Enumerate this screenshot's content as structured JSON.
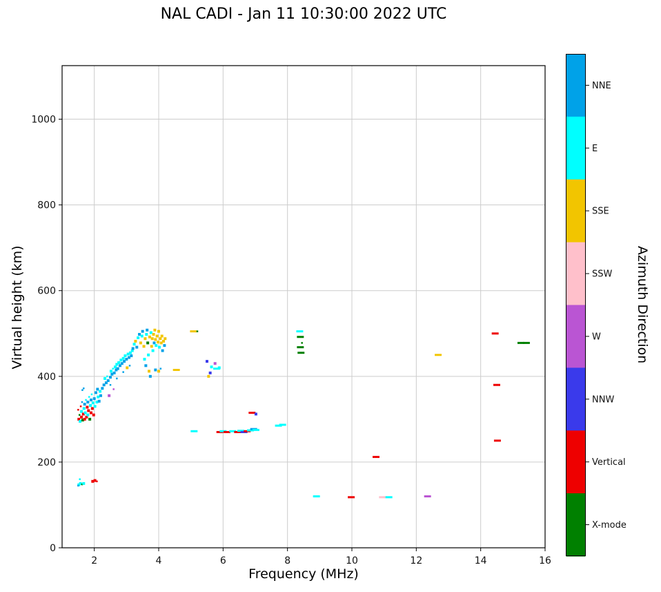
{
  "title": "NAL CADI - Jan 11 10:30:00 2022 UTC",
  "chart_data": {
    "type": "scatter",
    "title": "NAL CADI - Jan 11 10:30:00 2022 UTC",
    "xlabel": "Frequency (MHz)",
    "ylabel": "Virtual height (km)",
    "legend_title": "Azimuth Direction",
    "xlim": [
      1,
      16
    ],
    "ylim": [
      0,
      1125
    ],
    "xticks": [
      2,
      4,
      6,
      8,
      10,
      12,
      14,
      16
    ],
    "yticks": [
      0,
      200,
      400,
      600,
      800,
      1000
    ],
    "grid": true,
    "categories": [
      {
        "label": "NNE",
        "color": "#00a2e8"
      },
      {
        "label": "E",
        "color": "#00ffff"
      },
      {
        "label": "SSE",
        "color": "#f2c500"
      },
      {
        "label": "SSW",
        "color": "#ffc0cb"
      },
      {
        "label": "W",
        "color": "#ba55d3"
      },
      {
        "label": "NNW",
        "color": "#3a3aeb"
      },
      {
        "label": "Vertical",
        "color": "#ee0000"
      },
      {
        "label": "X-mode",
        "color": "#008000"
      }
    ],
    "points_format": "[frequency_MHz, virtual_height_km, category_index, marker_size(1=square,2=dash,3=dot)]",
    "points": [
      [
        1.52,
        147,
        1,
        1
      ],
      [
        1.57,
        150,
        1,
        1
      ],
      [
        1.62,
        148,
        7,
        3
      ],
      [
        1.67,
        150,
        1,
        1
      ],
      [
        1.55,
        160,
        1,
        3
      ],
      [
        1.5,
        145,
        0,
        3
      ],
      [
        1.95,
        155,
        6,
        1
      ],
      [
        2.02,
        157,
        6,
        1
      ],
      [
        2.08,
        155,
        6,
        3
      ],
      [
        1.5,
        322,
        6,
        3
      ],
      [
        1.52,
        300,
        6,
        1
      ],
      [
        1.54,
        310,
        7,
        3
      ],
      [
        1.56,
        295,
        1,
        1
      ],
      [
        1.58,
        330,
        6,
        3
      ],
      [
        1.6,
        305,
        6,
        1
      ],
      [
        1.6,
        318,
        1,
        1
      ],
      [
        1.62,
        340,
        0,
        3
      ],
      [
        1.64,
        298,
        7,
        1
      ],
      [
        1.66,
        312,
        6,
        1
      ],
      [
        1.68,
        325,
        1,
        1
      ],
      [
        1.7,
        300,
        6,
        1
      ],
      [
        1.7,
        335,
        0,
        1
      ],
      [
        1.72,
        315,
        1,
        1
      ],
      [
        1.74,
        345,
        1,
        3
      ],
      [
        1.76,
        305,
        6,
        1
      ],
      [
        1.78,
        328,
        6,
        1
      ],
      [
        1.8,
        310,
        1,
        1
      ],
      [
        1.8,
        340,
        0,
        1
      ],
      [
        1.82,
        320,
        6,
        1
      ],
      [
        1.84,
        352,
        1,
        3
      ],
      [
        1.86,
        300,
        7,
        1
      ],
      [
        1.88,
        332,
        1,
        1
      ],
      [
        1.9,
        315,
        6,
        1
      ],
      [
        1.9,
        345,
        0,
        1
      ],
      [
        1.92,
        358,
        1,
        3
      ],
      [
        1.94,
        325,
        6,
        1
      ],
      [
        1.96,
        338,
        1,
        1
      ],
      [
        1.98,
        310,
        6,
        1
      ],
      [
        2.0,
        348,
        0,
        1
      ],
      [
        2.02,
        330,
        1,
        1
      ],
      [
        2.05,
        362,
        0,
        1
      ],
      [
        2.08,
        340,
        1,
        1
      ],
      [
        2.1,
        370,
        0,
        1
      ],
      [
        2.12,
        352,
        1,
        1
      ],
      [
        2.15,
        342,
        0,
        1
      ],
      [
        2.18,
        365,
        1,
        1
      ],
      [
        2.2,
        355,
        0,
        1
      ],
      [
        2.25,
        372,
        0,
        1
      ],
      [
        1.63,
        368,
        0,
        3
      ],
      [
        1.67,
        372,
        0,
        3
      ],
      [
        2.3,
        380,
        0,
        1
      ],
      [
        2.33,
        395,
        1,
        1
      ],
      [
        2.37,
        385,
        0,
        1
      ],
      [
        2.4,
        400,
        1,
        3
      ],
      [
        2.43,
        390,
        0,
        1
      ],
      [
        2.46,
        355,
        4,
        1
      ],
      [
        2.5,
        398,
        0,
        1
      ],
      [
        2.52,
        412,
        1,
        1
      ],
      [
        2.55,
        405,
        0,
        1
      ],
      [
        2.58,
        418,
        1,
        3
      ],
      [
        2.6,
        370,
        4,
        3
      ],
      [
        2.62,
        408,
        0,
        1
      ],
      [
        2.65,
        422,
        1,
        1
      ],
      [
        2.68,
        415,
        0,
        1
      ],
      [
        2.7,
        428,
        1,
        1
      ],
      [
        2.73,
        418,
        0,
        1
      ],
      [
        2.76,
        432,
        1,
        1
      ],
      [
        2.8,
        425,
        0,
        1
      ],
      [
        2.83,
        438,
        1,
        1
      ],
      [
        2.86,
        430,
        0,
        1
      ],
      [
        2.9,
        442,
        1,
        1
      ],
      [
        2.93,
        435,
        0,
        1
      ],
      [
        2.96,
        448,
        1,
        1
      ],
      [
        3.0,
        440,
        0,
        1
      ],
      [
        3.02,
        420,
        2,
        1
      ],
      [
        3.05,
        452,
        1,
        1
      ],
      [
        3.08,
        444,
        0,
        1
      ],
      [
        3.12,
        455,
        1,
        1
      ],
      [
        3.15,
        448,
        0,
        1
      ],
      [
        3.18,
        460,
        1,
        1
      ],
      [
        2.5,
        380,
        0,
        3
      ],
      [
        2.7,
        395,
        0,
        3
      ],
      [
        2.9,
        410,
        0,
        3
      ],
      [
        3.1,
        425,
        0,
        3
      ],
      [
        3.2,
        465,
        0,
        1
      ],
      [
        3.24,
        475,
        1,
        1
      ],
      [
        3.28,
        482,
        2,
        1
      ],
      [
        3.32,
        468,
        0,
        1
      ],
      [
        3.36,
        490,
        1,
        1
      ],
      [
        3.4,
        498,
        0,
        1
      ],
      [
        3.44,
        478,
        2,
        1
      ],
      [
        3.48,
        494,
        1,
        1
      ],
      [
        3.5,
        505,
        0,
        1
      ],
      [
        3.54,
        470,
        2,
        1
      ],
      [
        3.56,
        440,
        1,
        1
      ],
      [
        3.58,
        488,
        2,
        1
      ],
      [
        3.6,
        425,
        0,
        1
      ],
      [
        3.62,
        498,
        1,
        1
      ],
      [
        3.64,
        508,
        0,
        1
      ],
      [
        3.66,
        478,
        7,
        1
      ],
      [
        3.68,
        450,
        1,
        1
      ],
      [
        3.7,
        412,
        2,
        1
      ],
      [
        3.72,
        492,
        2,
        1
      ],
      [
        3.74,
        400,
        0,
        1
      ],
      [
        3.76,
        502,
        1,
        1
      ],
      [
        3.78,
        470,
        2,
        1
      ],
      [
        3.8,
        488,
        2,
        1
      ],
      [
        3.82,
        460,
        1,
        1
      ],
      [
        3.84,
        498,
        2,
        1
      ],
      [
        3.86,
        478,
        0,
        1
      ],
      [
        3.88,
        508,
        2,
        1
      ],
      [
        3.9,
        486,
        2,
        1
      ],
      [
        3.92,
        472,
        1,
        1
      ],
      [
        3.95,
        494,
        2,
        1
      ],
      [
        3.98,
        480,
        2,
        1
      ],
      [
        4.0,
        505,
        2,
        1
      ],
      [
        4.02,
        468,
        1,
        1
      ],
      [
        4.05,
        488,
        2,
        1
      ],
      [
        4.08,
        478,
        2,
        1
      ],
      [
        4.1,
        494,
        2,
        1
      ],
      [
        4.12,
        460,
        0,
        1
      ],
      [
        4.15,
        482,
        2,
        1
      ],
      [
        4.18,
        472,
        0,
        1
      ],
      [
        4.2,
        488,
        2,
        1
      ],
      [
        3.9,
        415,
        0,
        1
      ],
      [
        4.0,
        412,
        2,
        1
      ],
      [
        4.06,
        418,
        0,
        3
      ],
      [
        4.55,
        415,
        2,
        2
      ],
      [
        5.08,
        505,
        2,
        2
      ],
      [
        5.2,
        505,
        7,
        3
      ],
      [
        5.1,
        272,
        1,
        2
      ],
      [
        5.5,
        435,
        5,
        1
      ],
      [
        5.55,
        400,
        2,
        1
      ],
      [
        5.6,
        408,
        5,
        1
      ],
      [
        5.64,
        422,
        1,
        1
      ],
      [
        5.75,
        430,
        4,
        1
      ],
      [
        5.8,
        418,
        1,
        2
      ],
      [
        5.88,
        420,
        1,
        1
      ],
      [
        5.9,
        270,
        6,
        2
      ],
      [
        6.0,
        272,
        1,
        2
      ],
      [
        6.12,
        270,
        6,
        2
      ],
      [
        6.3,
        272,
        1,
        2
      ],
      [
        6.45,
        270,
        6,
        2
      ],
      [
        6.55,
        273,
        1,
        2
      ],
      [
        6.65,
        270,
        5,
        2
      ],
      [
        6.75,
        272,
        6,
        2
      ],
      [
        6.85,
        274,
        1,
        2
      ],
      [
        6.95,
        277,
        0,
        2
      ],
      [
        7.02,
        275,
        1,
        2
      ],
      [
        6.9,
        315,
        6,
        2
      ],
      [
        7.02,
        312,
        5,
        1
      ],
      [
        7.72,
        285,
        1,
        2
      ],
      [
        7.85,
        287,
        1,
        2
      ],
      [
        8.38,
        505,
        1,
        2
      ],
      [
        8.4,
        492,
        7,
        2
      ],
      [
        8.4,
        468,
        7,
        2
      ],
      [
        8.42,
        455,
        7,
        2
      ],
      [
        8.45,
        478,
        7,
        3
      ],
      [
        8.9,
        120,
        1,
        2
      ],
      [
        9.98,
        118,
        6,
        2
      ],
      [
        10.75,
        212,
        6,
        2
      ],
      [
        10.95,
        118,
        3,
        2
      ],
      [
        11.15,
        118,
        1,
        2
      ],
      [
        12.35,
        120,
        4,
        2
      ],
      [
        12.68,
        450,
        2,
        2
      ],
      [
        14.45,
        500,
        6,
        2
      ],
      [
        14.5,
        380,
        6,
        2
      ],
      [
        14.52,
        250,
        6,
        2
      ],
      [
        15.25,
        478,
        7,
        2
      ],
      [
        15.35,
        478,
        6,
        3
      ],
      [
        15.42,
        478,
        7,
        2
      ]
    ]
  }
}
